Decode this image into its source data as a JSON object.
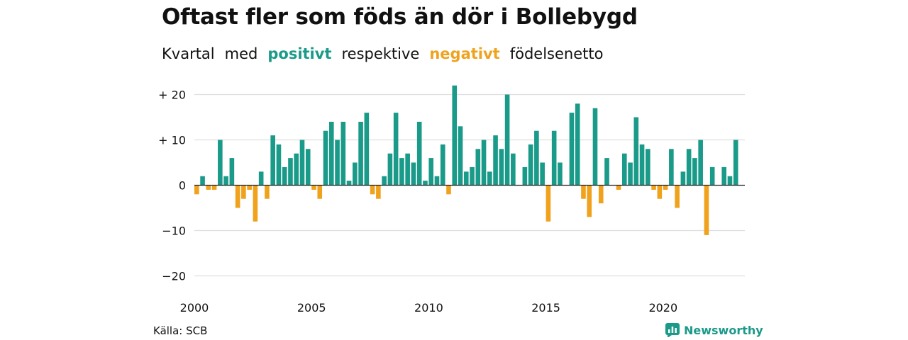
{
  "title": "Oftast fler som föds än dör i Bollebygd",
  "subtitle": {
    "w1": "Kvartal",
    "w2": "med",
    "positive_word": "positivt",
    "w3": "respektive",
    "negative_word": "negativt",
    "w4": "födelsenetto"
  },
  "source": "Källa: SCB",
  "brand": {
    "name": "Newsworthy",
    "icon": "newsworthy-logo-icon"
  },
  "colors": {
    "positive": "#1a9a89",
    "negative": "#f0a21d",
    "grid": "#dddddd",
    "zero": "#222222"
  },
  "chart_data": {
    "type": "bar",
    "x_start": "2000 Q1",
    "x_step": "quarter",
    "xlim": [
      "2000 Q1",
      "2023 Q3"
    ],
    "x_ticks": [
      {
        "quarter_index": 0,
        "label": "2000"
      },
      {
        "quarter_index": 20,
        "label": "2005"
      },
      {
        "quarter_index": 40,
        "label": "2010"
      },
      {
        "quarter_index": 60,
        "label": "2015"
      },
      {
        "quarter_index": 80,
        "label": "2020"
      }
    ],
    "y_ticks": [
      {
        "value": 20,
        "label": "+ 20"
      },
      {
        "value": 10,
        "label": "+ 10"
      },
      {
        "value": 0,
        "label": "0"
      },
      {
        "value": -10,
        "label": "−10"
      },
      {
        "value": -20,
        "label": "−20"
      }
    ],
    "ylim": [
      -20,
      22
    ],
    "grid": true,
    "values": [
      -2,
      2,
      -1,
      -1,
      10,
      2,
      6,
      -5,
      -3,
      -1,
      -8,
      3,
      -3,
      11,
      9,
      4,
      6,
      7,
      10,
      8,
      -1,
      -3,
      12,
      14,
      10,
      14,
      1,
      5,
      14,
      16,
      -2,
      -3,
      2,
      7,
      16,
      6,
      7,
      5,
      14,
      1,
      6,
      2,
      9,
      -2,
      22,
      13,
      3,
      4,
      8,
      10,
      3,
      11,
      8,
      20,
      7,
      0,
      4,
      9,
      12,
      5,
      -8,
      12,
      5,
      0,
      16,
      18,
      -3,
      -7,
      17,
      -4,
      6,
      0,
      -1,
      7,
      5,
      15,
      9,
      8,
      -1,
      -3,
      -1,
      8,
      -5,
      3,
      8,
      6,
      10,
      -11,
      4,
      0,
      4,
      2,
      10
    ]
  }
}
